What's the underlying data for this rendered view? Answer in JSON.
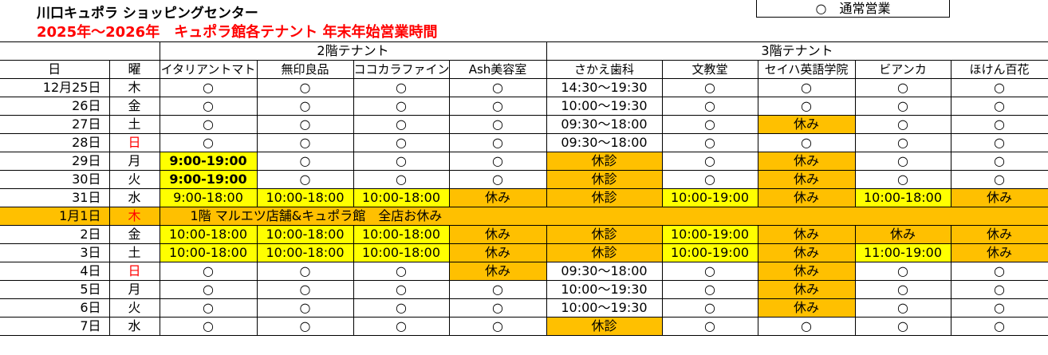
{
  "header": {
    "title": "川口キュポラ ショッピングセンター",
    "subtitle": "2025年～2026年　キュポラ館各テナント 年末年始営業時間",
    "legend": "○　通常営業"
  },
  "table": {
    "columns": [
      "日",
      "曜"
    ],
    "floors": [
      {
        "label": "2階テナント",
        "tenants": [
          "イタリアントマト",
          "無印良品",
          "ココカラファイン",
          "Ash美容室"
        ]
      },
      {
        "label": "3階テナント",
        "tenants": [
          "さかえ歯科",
          "文教堂",
          "セイハ英語学院",
          "ビアンカ",
          "ほけん百花"
        ]
      }
    ],
    "rows": [
      {
        "date": "12月25日",
        "day": "木",
        "cells": [
          "○",
          "○",
          "○",
          "○",
          "14:30～19:30",
          "○",
          "○",
          "○",
          "○"
        ]
      },
      {
        "date": "26日",
        "day": "金",
        "cells": [
          "○",
          "○",
          "○",
          "○",
          "10:00～19:30",
          "○",
          "○",
          "○",
          "○"
        ]
      },
      {
        "date": "27日",
        "day": "土",
        "cells": [
          "○",
          "○",
          "○",
          "○",
          "09:30～18:00",
          "○",
          {
            "text": "休み",
            "fill": "#FFC000"
          },
          "○",
          "○"
        ]
      },
      {
        "date": "28日",
        "day": "日",
        "day_color": "#FF0000",
        "cells": [
          "○",
          "○",
          "○",
          "○",
          "09:30～18:00",
          "○",
          "○",
          "○",
          "○"
        ]
      },
      {
        "date": "29日",
        "day": "月",
        "cells": [
          {
            "text": "9:00-19:00",
            "fill": "#FFFF00",
            "bold": true
          },
          "○",
          "○",
          "○",
          {
            "text": "休診",
            "fill": "#FFC000"
          },
          "○",
          {
            "text": "休み",
            "fill": "#FFC000"
          },
          "○",
          "○"
        ]
      },
      {
        "date": "30日",
        "day": "火",
        "cells": [
          {
            "text": "9:00-19:00",
            "fill": "#FFFF00",
            "bold": true
          },
          "○",
          "○",
          "○",
          {
            "text": "休診",
            "fill": "#FFC000"
          },
          "○",
          {
            "text": "休み",
            "fill": "#FFC000"
          },
          "○",
          "○"
        ]
      },
      {
        "date": "31日",
        "day": "水",
        "cells": [
          {
            "text": "9:00-18:00",
            "fill": "#FFFF00"
          },
          {
            "text": "10:00-18:00",
            "fill": "#FFFF00"
          },
          {
            "text": "10:00-18:00",
            "fill": "#FFFF00"
          },
          {
            "text": "休み",
            "fill": "#FFC000"
          },
          {
            "text": "休診",
            "fill": "#FFC000"
          },
          {
            "text": "10:00-19:00",
            "fill": "#FFFF00"
          },
          {
            "text": "休み",
            "fill": "#FFC000"
          },
          {
            "text": "10:00-18:00",
            "fill": "#FFFF00"
          },
          {
            "text": "休み",
            "fill": "#FFC000"
          }
        ]
      },
      {
        "date": "1月1日",
        "day": "木",
        "day_color": "#FF0000",
        "fill": "#FFC000",
        "note": "1階 マルエツ店舗&キュポラ館　全店お休み"
      },
      {
        "date": "2日",
        "day": "金",
        "cells": [
          {
            "text": "10:00-18:00",
            "fill": "#FFFF00"
          },
          {
            "text": "10:00-18:00",
            "fill": "#FFFF00"
          },
          {
            "text": "10:00-18:00",
            "fill": "#FFFF00"
          },
          {
            "text": "休み",
            "fill": "#FFC000"
          },
          {
            "text": "休診",
            "fill": "#FFC000"
          },
          {
            "text": "10:00-19:00",
            "fill": "#FFFF00"
          },
          {
            "text": "休み",
            "fill": "#FFC000"
          },
          {
            "text": "休み",
            "fill": "#FFC000"
          },
          {
            "text": "休み",
            "fill": "#FFC000"
          }
        ]
      },
      {
        "date": "3日",
        "day": "土",
        "cells": [
          {
            "text": "10:00-18:00",
            "fill": "#FFFF00"
          },
          {
            "text": "10:00-18:00",
            "fill": "#FFFF00"
          },
          {
            "text": "10:00-18:00",
            "fill": "#FFFF00"
          },
          {
            "text": "休み",
            "fill": "#FFC000"
          },
          {
            "text": "休診",
            "fill": "#FFC000"
          },
          {
            "text": "10:00-19:00",
            "fill": "#FFFF00"
          },
          {
            "text": "休み",
            "fill": "#FFC000"
          },
          {
            "text": "11:00-19:00",
            "fill": "#FFFF00"
          },
          {
            "text": "休み",
            "fill": "#FFC000"
          }
        ]
      },
      {
        "date": "4日",
        "day": "日",
        "day_color": "#FF0000",
        "cells": [
          "○",
          "○",
          "○",
          {
            "text": "休み",
            "fill": "#FFC000"
          },
          "09:30～18:00",
          "○",
          {
            "text": "休み",
            "fill": "#FFC000"
          },
          "○",
          "○"
        ]
      },
      {
        "date": "5日",
        "day": "月",
        "cells": [
          "○",
          "○",
          "○",
          "○",
          "10:00～19:30",
          "○",
          {
            "text": "休み",
            "fill": "#FFC000"
          },
          "○",
          "○"
        ]
      },
      {
        "date": "6日",
        "day": "火",
        "cells": [
          "○",
          "○",
          "○",
          "○",
          "10:00～19:30",
          "○",
          {
            "text": "休み",
            "fill": "#FFC000"
          },
          "○",
          "○"
        ]
      },
      {
        "date": "7日",
        "day": "水",
        "cells": [
          "○",
          "○",
          "○",
          "○",
          {
            "text": "休診",
            "fill": "#FFC000"
          },
          "○",
          "○",
          "○",
          "○"
        ]
      }
    ]
  }
}
